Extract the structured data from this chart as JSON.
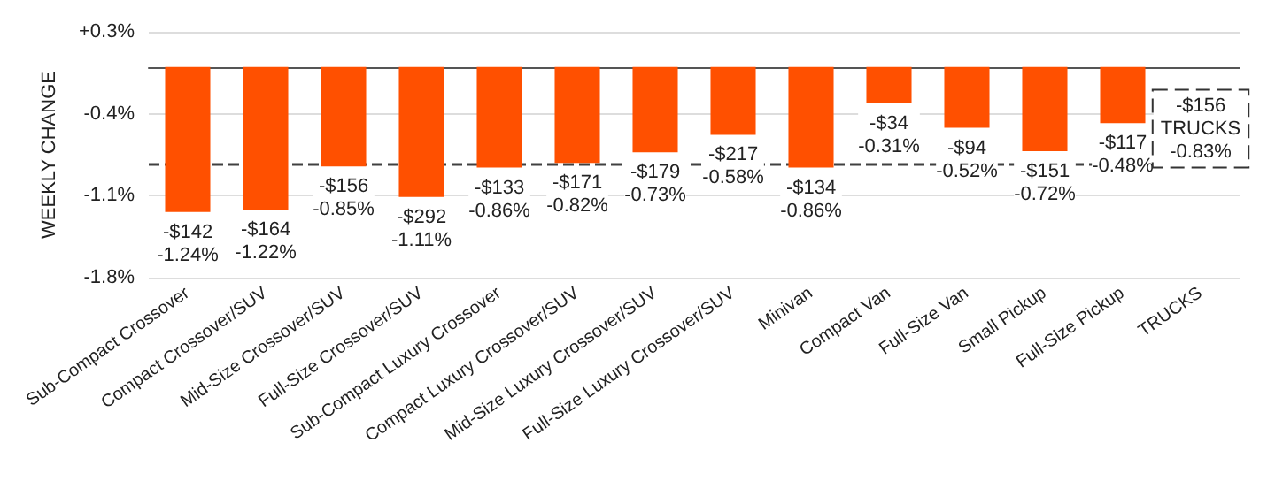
{
  "chart_data": {
    "type": "bar",
    "ylabel": "WEEKLY CHANGE",
    "categories": [
      "Sub-Compact Crossover",
      "Compact Crossover/SUV",
      "Mid-Size Crossover/SUV",
      "Full-Size Crossover/SUV",
      "Sub-Compact Luxury Crossover",
      "Compact Luxury Crossover/SUV",
      "Mid-Size Luxury Crossover/SUV",
      "Full-Size Luxury Crossover/SUV",
      "Minivan",
      "Compact Van",
      "Full-Size Van",
      "Small Pickup",
      "Full-Size Pickup",
      "TRUCKS"
    ],
    "values": [
      -1.24,
      -1.22,
      -0.85,
      -1.11,
      -0.86,
      -0.82,
      -0.73,
      -0.58,
      -0.86,
      -0.31,
      -0.52,
      -0.72,
      -0.48,
      null
    ],
    "value_labels": [
      "-$142\n-1.24%",
      "-$164\n-1.22%",
      "-$156\n-0.85%",
      "-$292\n-1.11%",
      "-$133\n-0.86%",
      "-$171\n-0.82%",
      "-$179\n-0.73%",
      "-$217\n-0.58%",
      "-$134\n-0.86%",
      "-$34\n-0.31%",
      "-$94\n-0.52%",
      "-$151\n-0.72%",
      "-$117\n-0.48%",
      null
    ],
    "color": "#ff5000",
    "ylim": [
      -1.8,
      0.3
    ],
    "yticks": [
      {
        "value": 0.3,
        "label": "+0.3%"
      },
      {
        "value": -0.4,
        "label": "-0.4%"
      },
      {
        "value": -1.1,
        "label": "-1.1%"
      },
      {
        "value": -1.8,
        "label": "-1.8%"
      }
    ],
    "grid": "y",
    "ref_lines": [
      {
        "axis": "y",
        "value": -0.83,
        "color": "#404040",
        "line_style": "dashed"
      }
    ],
    "annotations": [
      {
        "text": "-$156\nTRUCKS\n-0.83%",
        "x": "TRUCKS",
        "y": -0.83
      }
    ]
  }
}
